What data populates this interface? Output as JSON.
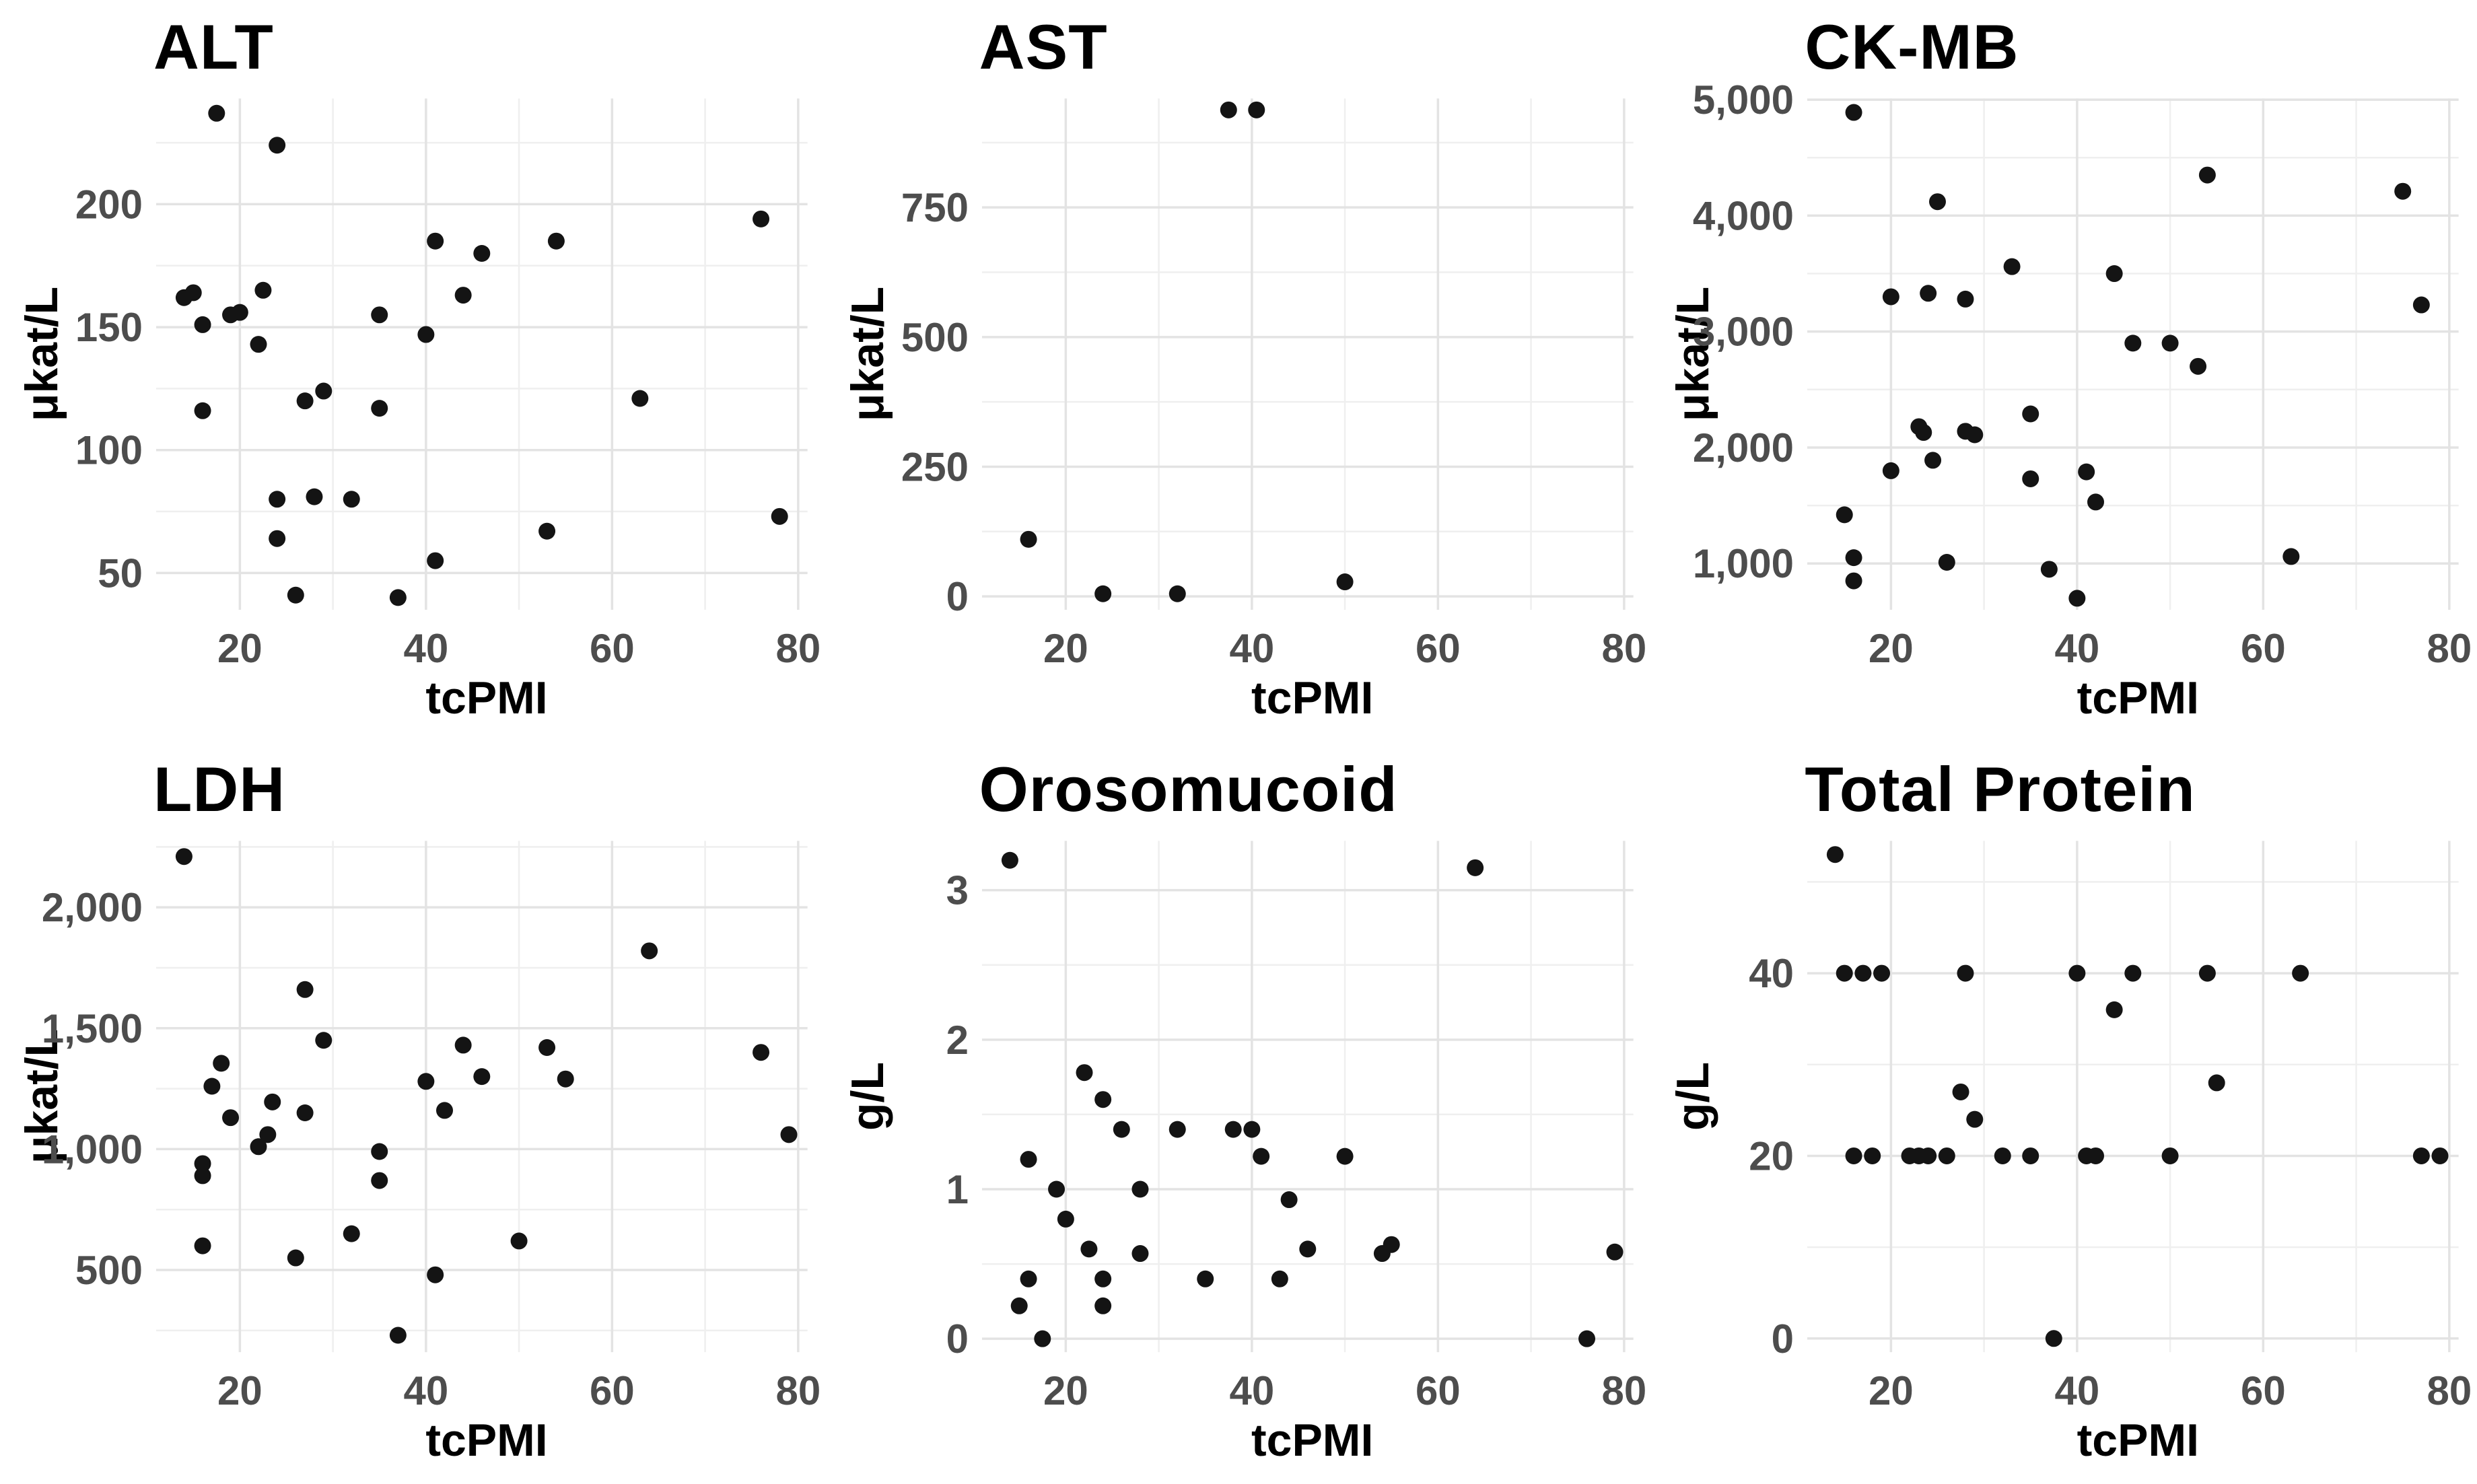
{
  "figure": {
    "xlabel": "tcPMI",
    "unit_enzyme": "μkat/L",
    "unit_protein": "g/L"
  },
  "colors": {
    "background": "#ffffff",
    "point": "#141414",
    "grid_major": "#e3e3e3",
    "grid_minor": "#efefef",
    "tick_label": "#4d4d4d",
    "title": "#000000"
  },
  "chart_data": [
    {
      "type": "scatter",
      "title": "ALT",
      "ylabel": "μkat/L",
      "xlabel": "tcPMI",
      "xlim": [
        11,
        81
      ],
      "ylim": [
        35,
        243
      ],
      "x_ticks": [
        {
          "v": 20,
          "label": "20"
        },
        {
          "v": 40,
          "label": "40"
        },
        {
          "v": 60,
          "label": "60"
        },
        {
          "v": 80,
          "label": "80"
        }
      ],
      "y_ticks": [
        {
          "v": 50,
          "label": "50"
        },
        {
          "v": 100,
          "label": "100"
        },
        {
          "v": 150,
          "label": "150"
        },
        {
          "v": 200,
          "label": "200"
        }
      ],
      "x_minor": [
        30,
        50,
        70
      ],
      "y_minor": [
        75,
        125,
        175,
        225
      ],
      "grid": true,
      "legend": "none",
      "points": [
        [
          14,
          162
        ],
        [
          15,
          164
        ],
        [
          16,
          151
        ],
        [
          16,
          116
        ],
        [
          17.5,
          237
        ],
        [
          19,
          155
        ],
        [
          20,
          156
        ],
        [
          22,
          143
        ],
        [
          22.5,
          165
        ],
        [
          24,
          224
        ],
        [
          24,
          80
        ],
        [
          24,
          64
        ],
        [
          26,
          41
        ],
        [
          27,
          120
        ],
        [
          28,
          81
        ],
        [
          29,
          124
        ],
        [
          32,
          80
        ],
        [
          35,
          155
        ],
        [
          35,
          117
        ],
        [
          37,
          40
        ],
        [
          40,
          147
        ],
        [
          41,
          185
        ],
        [
          41,
          55
        ],
        [
          44,
          163
        ],
        [
          46,
          180
        ],
        [
          53,
          67
        ],
        [
          54,
          185
        ],
        [
          63,
          121
        ],
        [
          76,
          194
        ],
        [
          78,
          73
        ]
      ]
    },
    {
      "type": "scatter",
      "title": "AST",
      "ylabel": "μkat/L",
      "xlabel": "tcPMI",
      "xlim": [
        11,
        81
      ],
      "ylim": [
        -26,
        960
      ],
      "x_ticks": [
        {
          "v": 20,
          "label": "20"
        },
        {
          "v": 40,
          "label": "40"
        },
        {
          "v": 60,
          "label": "60"
        },
        {
          "v": 80,
          "label": "80"
        }
      ],
      "y_ticks": [
        {
          "v": 0,
          "label": "0"
        },
        {
          "v": 250,
          "label": "250"
        },
        {
          "v": 500,
          "label": "500"
        },
        {
          "v": 750,
          "label": "750"
        }
      ],
      "x_minor": [
        30,
        50,
        70
      ],
      "y_minor": [
        125,
        375,
        625,
        875
      ],
      "grid": true,
      "legend": "none",
      "points": [
        [
          16,
          110
        ],
        [
          24,
          5
        ],
        [
          32,
          5
        ],
        [
          37.5,
          938
        ],
        [
          40.5,
          938
        ],
        [
          50,
          28
        ]
      ]
    },
    {
      "type": "scatter",
      "title": "CK-MB",
      "ylabel": "μkat/L",
      "xlabel": "tcPMI",
      "xlim": [
        11,
        81
      ],
      "ylim": [
        600,
        5010
      ],
      "x_ticks": [
        {
          "v": 20,
          "label": "20"
        },
        {
          "v": 40,
          "label": "40"
        },
        {
          "v": 60,
          "label": "60"
        },
        {
          "v": 80,
          "label": "80"
        }
      ],
      "y_ticks": [
        {
          "v": 1000,
          "label": "1,000"
        },
        {
          "v": 2000,
          "label": "2,000"
        },
        {
          "v": 3000,
          "label": "3,000"
        },
        {
          "v": 4000,
          "label": "4,000"
        },
        {
          "v": 5000,
          "label": "5,000"
        }
      ],
      "x_minor": [
        30,
        50,
        70
      ],
      "y_minor": [
        1500,
        2500,
        3500,
        4500
      ],
      "grid": true,
      "legend": "none",
      "points": [
        [
          15,
          1420
        ],
        [
          16,
          4890
        ],
        [
          16,
          1050
        ],
        [
          16,
          850
        ],
        [
          20,
          3300
        ],
        [
          20,
          1800
        ],
        [
          23,
          2180
        ],
        [
          23.5,
          2130
        ],
        [
          24,
          3330
        ],
        [
          24.5,
          1890
        ],
        [
          25,
          4120
        ],
        [
          26,
          1010
        ],
        [
          28,
          3280
        ],
        [
          28,
          2140
        ],
        [
          29,
          2110
        ],
        [
          33,
          3560
        ],
        [
          35,
          2290
        ],
        [
          35,
          1730
        ],
        [
          37,
          950
        ],
        [
          40,
          700
        ],
        [
          41,
          1790
        ],
        [
          42,
          1530
        ],
        [
          44,
          3500
        ],
        [
          46,
          2900
        ],
        [
          50,
          2900
        ],
        [
          53,
          2700
        ],
        [
          54,
          4350
        ],
        [
          63,
          1060
        ],
        [
          75,
          4210
        ],
        [
          77,
          3230
        ]
      ]
    },
    {
      "type": "scatter",
      "title": "LDH",
      "ylabel": "μkat/L",
      "xlabel": "tcPMI",
      "xlim": [
        11,
        81
      ],
      "ylim": [
        160,
        2275
      ],
      "x_ticks": [
        {
          "v": 20,
          "label": "20"
        },
        {
          "v": 40,
          "label": "40"
        },
        {
          "v": 60,
          "label": "60"
        },
        {
          "v": 80,
          "label": "80"
        }
      ],
      "y_ticks": [
        {
          "v": 500,
          "label": "500"
        },
        {
          "v": 1000,
          "label": "1,000"
        },
        {
          "v": 1500,
          "label": "1,500"
        },
        {
          "v": 2000,
          "label": "2,000"
        }
      ],
      "x_minor": [
        30,
        50,
        70
      ],
      "y_minor": [
        250,
        750,
        1250,
        1750,
        2250
      ],
      "grid": true,
      "legend": "none",
      "points": [
        [
          14,
          2210
        ],
        [
          16,
          940
        ],
        [
          16,
          890
        ],
        [
          16,
          600
        ],
        [
          17,
          1260
        ],
        [
          18,
          1355
        ],
        [
          19,
          1130
        ],
        [
          22,
          1010
        ],
        [
          23,
          1060
        ],
        [
          23.5,
          1195
        ],
        [
          26,
          550
        ],
        [
          27,
          1660
        ],
        [
          27,
          1150
        ],
        [
          29,
          1450
        ],
        [
          32,
          650
        ],
        [
          35,
          990
        ],
        [
          35,
          870
        ],
        [
          37,
          230
        ],
        [
          40,
          1280
        ],
        [
          41,
          480
        ],
        [
          42,
          1160
        ],
        [
          44,
          1430
        ],
        [
          46,
          1300
        ],
        [
          50,
          620
        ],
        [
          53,
          1420
        ],
        [
          55,
          1290
        ],
        [
          64,
          1820
        ],
        [
          76,
          1400
        ],
        [
          79,
          1060
        ]
      ]
    },
    {
      "type": "scatter",
      "title": "Orosomucoid",
      "ylabel": "g/L",
      "xlabel": "tcPMI",
      "xlim": [
        11,
        81
      ],
      "ylim": [
        -0.09,
        3.33
      ],
      "x_ticks": [
        {
          "v": 20,
          "label": "20"
        },
        {
          "v": 40,
          "label": "40"
        },
        {
          "v": 60,
          "label": "60"
        },
        {
          "v": 80,
          "label": "80"
        }
      ],
      "y_ticks": [
        {
          "v": 0,
          "label": "0"
        },
        {
          "v": 1,
          "label": "1"
        },
        {
          "v": 2,
          "label": "2"
        },
        {
          "v": 3,
          "label": "3"
        }
      ],
      "x_minor": [
        30,
        50,
        70
      ],
      "y_minor": [
        0.5,
        1.5,
        2.5
      ],
      "grid": true,
      "legend": "none",
      "points": [
        [
          14,
          3.2
        ],
        [
          15,
          0.22
        ],
        [
          16,
          1.2
        ],
        [
          16,
          0.4
        ],
        [
          17.5,
          0
        ],
        [
          19,
          1.0
        ],
        [
          20,
          0.8
        ],
        [
          22,
          1.78
        ],
        [
          22.5,
          0.6
        ],
        [
          24,
          1.6
        ],
        [
          24,
          0.4
        ],
        [
          24,
          0.22
        ],
        [
          26,
          1.4
        ],
        [
          28,
          1.0
        ],
        [
          28,
          0.57
        ],
        [
          32,
          1.4
        ],
        [
          35,
          0.4
        ],
        [
          38,
          1.4
        ],
        [
          40,
          1.4
        ],
        [
          41,
          1.22
        ],
        [
          43,
          0.4
        ],
        [
          44,
          0.93
        ],
        [
          46,
          0.6
        ],
        [
          50,
          1.22
        ],
        [
          54,
          0.57
        ],
        [
          55,
          0.63
        ],
        [
          64,
          3.15
        ],
        [
          76,
          0
        ],
        [
          79,
          0.58
        ]
      ]
    },
    {
      "type": "scatter",
      "title": "Total Protein",
      "ylabel": "g/L",
      "xlabel": "tcPMI",
      "xlim": [
        11,
        81
      ],
      "ylim": [
        -1.5,
        54.5
      ],
      "x_ticks": [
        {
          "v": 20,
          "label": "20"
        },
        {
          "v": 40,
          "label": "40"
        },
        {
          "v": 60,
          "label": "60"
        },
        {
          "v": 80,
          "label": "80"
        }
      ],
      "y_ticks": [
        {
          "v": 0,
          "label": "0"
        },
        {
          "v": 20,
          "label": "20"
        },
        {
          "v": 40,
          "label": "40"
        }
      ],
      "x_minor": [
        30,
        50,
        70
      ],
      "y_minor": [
        10,
        30,
        50
      ],
      "grid": true,
      "legend": "none",
      "points": [
        [
          14,
          53
        ],
        [
          15,
          40
        ],
        [
          17,
          40
        ],
        [
          19,
          40
        ],
        [
          28,
          40
        ],
        [
          40,
          40
        ],
        [
          46,
          40
        ],
        [
          54,
          40
        ],
        [
          64,
          40
        ],
        [
          44,
          36
        ],
        [
          55,
          28
        ],
        [
          27.5,
          27
        ],
        [
          29,
          24
        ],
        [
          16,
          20
        ],
        [
          18,
          20
        ],
        [
          22,
          20
        ],
        [
          23,
          20
        ],
        [
          24,
          20
        ],
        [
          26,
          20
        ],
        [
          32,
          20
        ],
        [
          35,
          20
        ],
        [
          41,
          20
        ],
        [
          42,
          20
        ],
        [
          50,
          20
        ],
        [
          77,
          20
        ],
        [
          79,
          20
        ],
        [
          37.5,
          0
        ]
      ]
    }
  ]
}
